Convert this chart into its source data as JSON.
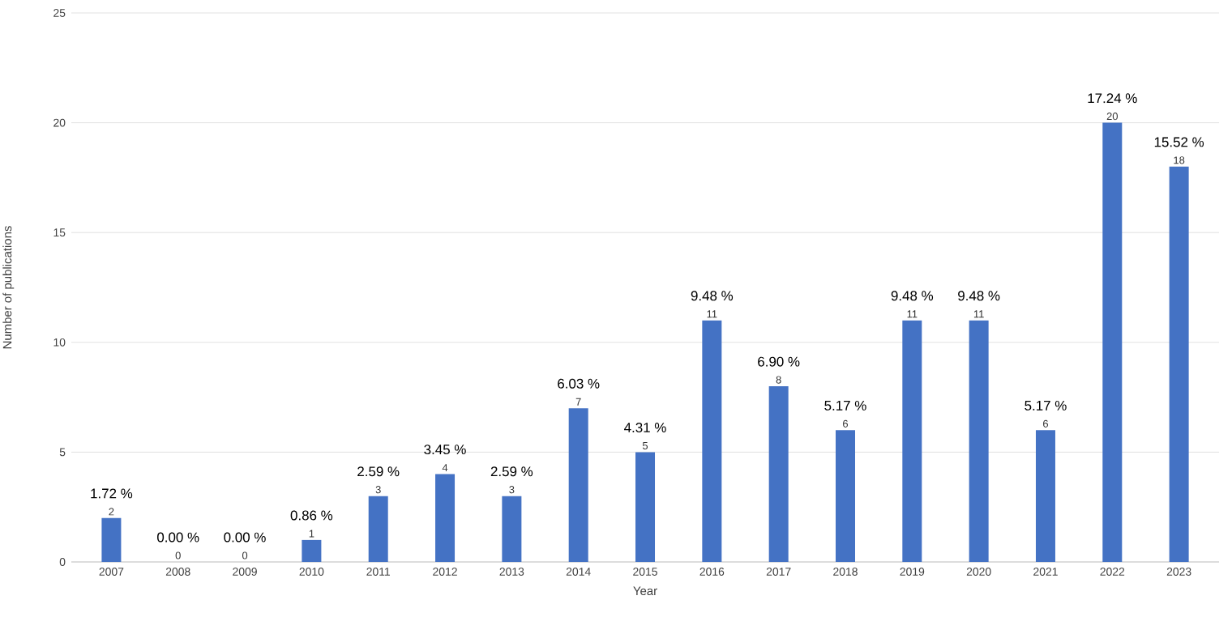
{
  "chart_data": {
    "type": "bar",
    "xlabel": "Year",
    "ylabel": "Number of publications",
    "categories": [
      "2007",
      "2008",
      "2009",
      "2010",
      "2011",
      "2012",
      "2013",
      "2014",
      "2015",
      "2016",
      "2017",
      "2018",
      "2019",
      "2020",
      "2021",
      "2022",
      "2023"
    ],
    "values": [
      2,
      0,
      0,
      1,
      3,
      4,
      3,
      7,
      5,
      11,
      8,
      6,
      11,
      11,
      6,
      20,
      18
    ],
    "color": "#4472c4",
    "ylim": [
      0,
      25
    ],
    "yticks": [
      0,
      5,
      10,
      15,
      20,
      25
    ],
    "grid": "y",
    "data_labels": true,
    "annotations": [
      {
        "text": "1.72 %",
        "x": "2007",
        "y": 2
      },
      {
        "text": "0.00 %",
        "x": "2008",
        "y": 0
      },
      {
        "text": "0.00 %",
        "x": "2009",
        "y": 0
      },
      {
        "text": "0.86 %",
        "x": "2010",
        "y": 1
      },
      {
        "text": "2.59 %",
        "x": "2011",
        "y": 3
      },
      {
        "text": "3.45 %",
        "x": "2012",
        "y": 4
      },
      {
        "text": "2.59 %",
        "x": "2013",
        "y": 3
      },
      {
        "text": "6.03 %",
        "x": "2014",
        "y": 7
      },
      {
        "text": "4.31 %",
        "x": "2015",
        "y": 5
      },
      {
        "text": "9.48 %",
        "x": "2016",
        "y": 11
      },
      {
        "text": "6.90 %",
        "x": "2017",
        "y": 8
      },
      {
        "text": "5.17 %",
        "x": "2018",
        "y": 6
      },
      {
        "text": "9.48 %",
        "x": "2019",
        "y": 11
      },
      {
        "text": "9.48 %",
        "x": "2020",
        "y": 11
      },
      {
        "text": "5.17 %",
        "x": "2021",
        "y": 6
      },
      {
        "text": "17.24 %",
        "x": "2022",
        "y": 20
      },
      {
        "text": "15.52 %",
        "x": "2023",
        "y": 18
      }
    ]
  }
}
